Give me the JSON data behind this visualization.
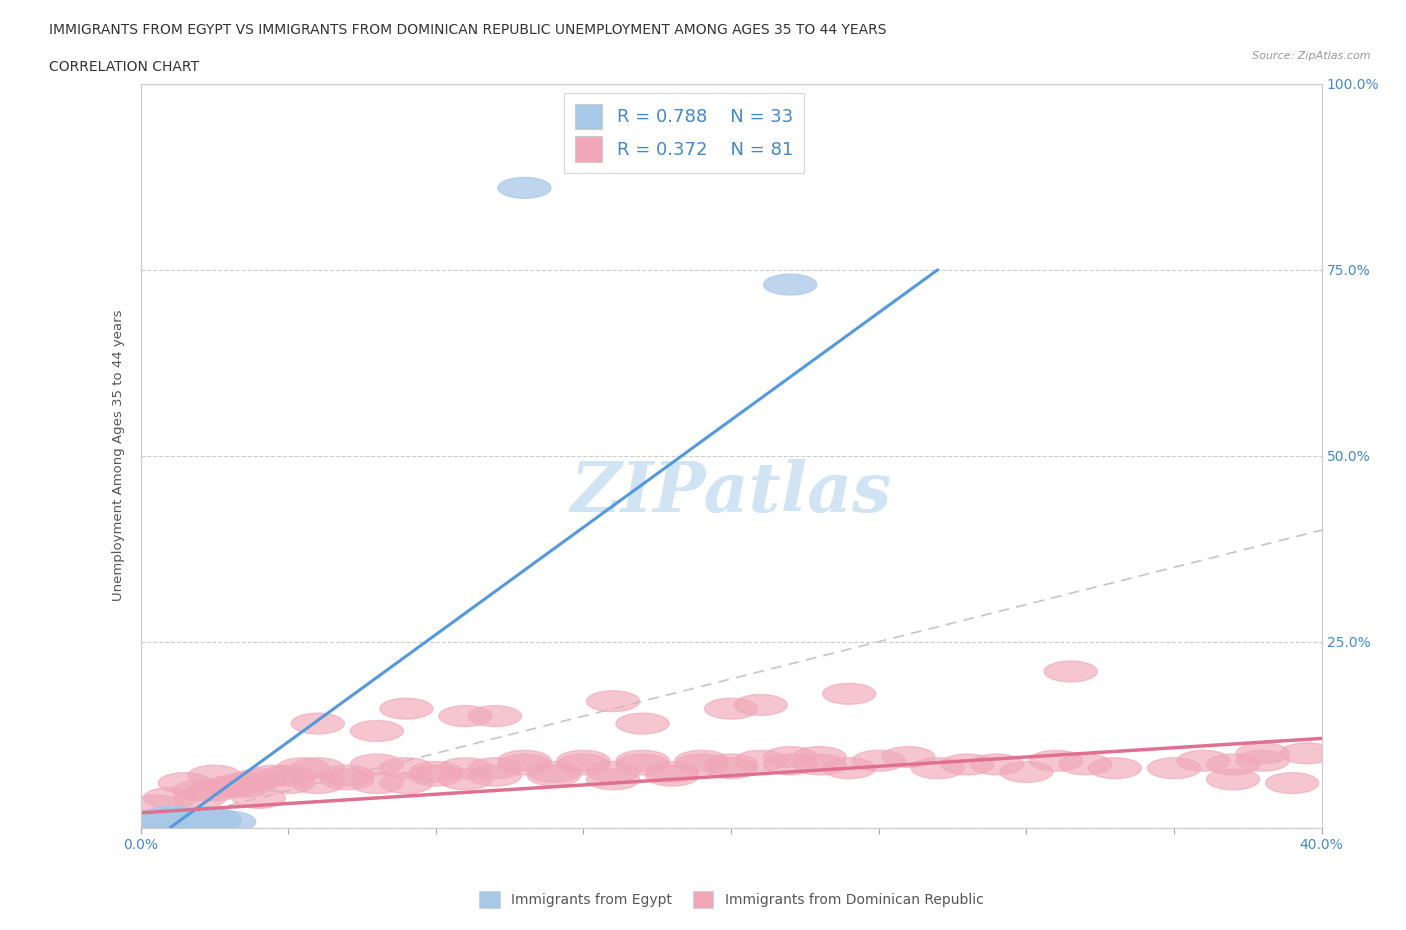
{
  "title_line1": "IMMIGRANTS FROM EGYPT VS IMMIGRANTS FROM DOMINICAN REPUBLIC UNEMPLOYMENT AMONG AGES 35 TO 44 YEARS",
  "title_line2": "CORRELATION CHART",
  "source_text": "Source: ZipAtlas.com",
  "ylabel": "Unemployment Among Ages 35 to 44 years",
  "xlim": [
    0.0,
    0.4
  ],
  "ylim": [
    0.0,
    1.0
  ],
  "egypt_R": 0.788,
  "egypt_N": 33,
  "dr_R": 0.372,
  "dr_N": 81,
  "egypt_color": "#a8c8e8",
  "dr_color": "#f0a8b8",
  "egypt_line_color": "#5599dd",
  "dr_line_color": "#e07090",
  "ref_line_color": "#bbbbbb",
  "legend_text_color": "#4488cc",
  "watermark_color": "#d0e4f4",
  "egypt_x": [
    0.005,
    0.008,
    0.01,
    0.012,
    0.015,
    0.018,
    0.02,
    0.022,
    0.025,
    0.008,
    0.01,
    0.015,
    0.012,
    0.018,
    0.008,
    0.015,
    0.022,
    0.018,
    0.012,
    0.008,
    0.025,
    0.03,
    0.022,
    0.018,
    0.015,
    0.01,
    0.02,
    0.008,
    0.015,
    0.025,
    0.13,
    0.22,
    0.008
  ],
  "egypt_y": [
    0.01,
    0.005,
    0.015,
    0.008,
    0.012,
    0.006,
    0.01,
    0.014,
    0.008,
    0.003,
    0.005,
    0.01,
    0.015,
    0.008,
    0.012,
    0.005,
    0.01,
    0.008,
    0.006,
    0.004,
    0.01,
    0.008,
    0.005,
    0.012,
    0.008,
    0.006,
    0.01,
    0.005,
    0.008,
    0.012,
    0.86,
    0.73,
    0.003
  ],
  "egypt_line_x": [
    0.01,
    0.27
  ],
  "egypt_line_y": [
    0.0,
    0.75
  ],
  "dr_line_x": [
    0.0,
    0.4
  ],
  "dr_line_y": [
    0.02,
    0.12
  ],
  "dr_x": [
    0.005,
    0.01,
    0.015,
    0.02,
    0.025,
    0.03,
    0.035,
    0.04,
    0.045,
    0.05,
    0.055,
    0.06,
    0.07,
    0.08,
    0.09,
    0.1,
    0.11,
    0.12,
    0.13,
    0.14,
    0.15,
    0.16,
    0.17,
    0.18,
    0.19,
    0.2,
    0.21,
    0.22,
    0.23,
    0.24,
    0.25,
    0.27,
    0.28,
    0.3,
    0.32,
    0.35,
    0.37,
    0.38,
    0.39,
    0.395,
    0.06,
    0.09,
    0.12,
    0.16,
    0.2,
    0.24,
    0.08,
    0.11,
    0.17,
    0.21,
    0.03,
    0.04,
    0.05,
    0.06,
    0.07,
    0.08,
    0.09,
    0.1,
    0.11,
    0.12,
    0.13,
    0.14,
    0.15,
    0.16,
    0.17,
    0.18,
    0.19,
    0.2,
    0.22,
    0.23,
    0.26,
    0.29,
    0.31,
    0.33,
    0.36,
    0.38,
    0.02,
    0.025,
    0.035,
    0.315,
    0.37
  ],
  "dr_y": [
    0.03,
    0.04,
    0.06,
    0.05,
    0.07,
    0.055,
    0.06,
    0.04,
    0.07,
    0.06,
    0.08,
    0.06,
    0.07,
    0.06,
    0.08,
    0.07,
    0.08,
    0.07,
    0.09,
    0.07,
    0.085,
    0.075,
    0.09,
    0.07,
    0.085,
    0.08,
    0.09,
    0.085,
    0.095,
    0.08,
    0.09,
    0.08,
    0.085,
    0.075,
    0.085,
    0.08,
    0.085,
    0.09,
    0.06,
    0.1,
    0.14,
    0.16,
    0.15,
    0.17,
    0.16,
    0.18,
    0.13,
    0.15,
    0.14,
    0.165,
    0.055,
    0.065,
    0.07,
    0.08,
    0.065,
    0.085,
    0.06,
    0.075,
    0.065,
    0.08,
    0.085,
    0.075,
    0.09,
    0.065,
    0.085,
    0.075,
    0.09,
    0.085,
    0.095,
    0.085,
    0.095,
    0.085,
    0.09,
    0.08,
    0.09,
    0.1,
    0.04,
    0.05,
    0.055,
    0.21,
    0.065
  ]
}
